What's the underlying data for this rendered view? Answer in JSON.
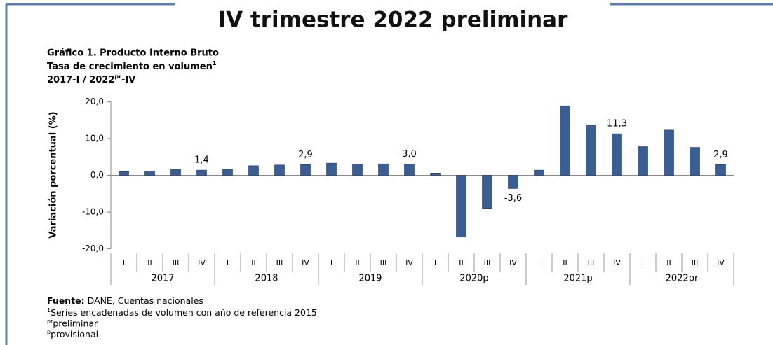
{
  "header": {
    "title": "IV trimestre 2022 preliminar"
  },
  "chart_data": {
    "type": "bar",
    "title": "Gráfico 1. Producto Interno Bruto",
    "subtitle": [
      "Tasa de crecimiento en volumen",
      "1"
    ],
    "period": [
      "2017-I / 2022",
      "pr",
      "-IV"
    ],
    "y_label": "Variación porcentual (%)",
    "categories": [
      "I",
      "II",
      "III",
      "IV",
      "I",
      "II",
      "III",
      "IV",
      "I",
      "II",
      "III",
      "IV",
      "I",
      "II",
      "III",
      "IV",
      "I",
      "II",
      "III",
      "IV",
      "I",
      "II",
      "III",
      "IV"
    ],
    "groups": [
      "2017",
      "2018",
      "2019",
      "2020p",
      "2021p",
      "2022pr"
    ],
    "values": [
      1.0,
      1.1,
      1.6,
      1.4,
      1.6,
      2.6,
      2.8,
      2.9,
      3.3,
      3.0,
      3.1,
      3.0,
      0.6,
      -16.8,
      -9.0,
      -3.6,
      1.4,
      18.9,
      13.6,
      11.3,
      7.8,
      12.3,
      7.6,
      2.9
    ],
    "value_labels": [
      null,
      null,
      null,
      "1,4",
      null,
      null,
      null,
      "2,9",
      null,
      null,
      null,
      "3,0",
      null,
      null,
      null,
      "-3,6",
      null,
      null,
      null,
      "11,3",
      null,
      null,
      null,
      "2,9"
    ],
    "color": "#3a5d93",
    "ylim": [
      -20,
      20
    ],
    "yticks": [
      {
        "value": -20,
        "label": "-20,0"
      },
      {
        "value": -10,
        "label": "-10,0"
      },
      {
        "value": 0,
        "label": "0,0"
      },
      {
        "value": 10,
        "label": "10,0"
      },
      {
        "value": 20,
        "label": "20,0"
      }
    ]
  },
  "footnotes": {
    "source": [
      "Fuente:",
      " DANE, Cuentas nacionales"
    ],
    "notes": [
      [
        "1",
        "Series encadenadas de volumen con año de referencia 2015"
      ],
      [
        "pr",
        "preliminar"
      ],
      [
        "p",
        "provisional"
      ]
    ]
  }
}
